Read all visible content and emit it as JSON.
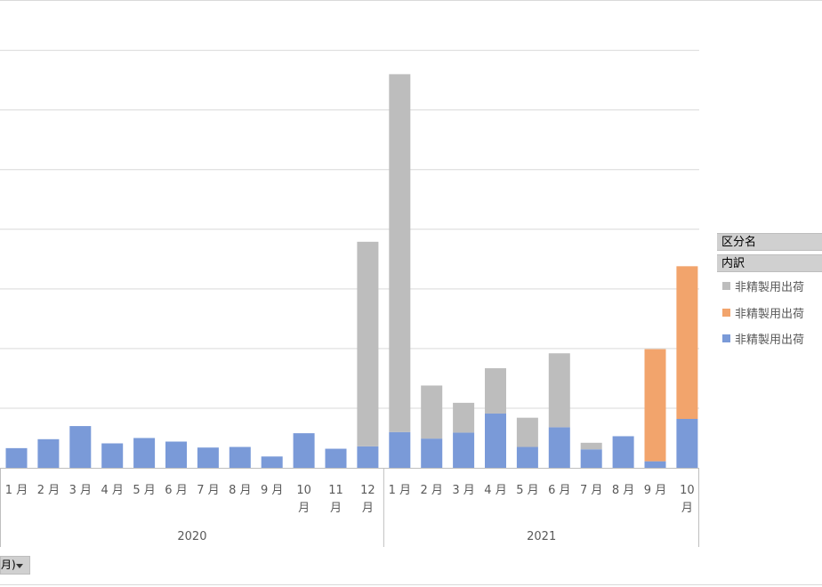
{
  "chart_data": {
    "type": "bar",
    "stacked": true,
    "grid": true,
    "year_groups": [
      {
        "label": "2020",
        "month_count": 12
      },
      {
        "label": "2021",
        "month_count": 10
      }
    ],
    "categories": [
      "1月",
      "2月",
      "3月",
      "4月",
      "5月",
      "6月",
      "7月",
      "8月",
      "9月",
      "10月",
      "11月",
      "12月",
      "1月",
      "2月",
      "3月",
      "4月",
      "5月",
      "6月",
      "7月",
      "8月",
      "9月",
      "10月"
    ],
    "series": [
      {
        "name": "非精製用出荷",
        "color": "#7a9ad8",
        "values": [
          33,
          48,
          70,
          41,
          50,
          44,
          34,
          35,
          19,
          58,
          32,
          36,
          60,
          49,
          59,
          91,
          35,
          68,
          31,
          53,
          11,
          82
        ]
      },
      {
        "name": "非精製用出荷",
        "color": "#f2a46c",
        "values": [
          0,
          0,
          0,
          0,
          0,
          0,
          0,
          0,
          0,
          0,
          0,
          0,
          0,
          0,
          0,
          0,
          0,
          0,
          0,
          0,
          188,
          256
        ]
      },
      {
        "name": "非精製用出荷",
        "color": "#bdbdbd",
        "values": [
          0,
          0,
          0,
          0,
          0,
          0,
          0,
          0,
          0,
          0,
          0,
          343,
          600,
          89,
          50,
          76,
          49,
          124,
          11,
          0,
          0,
          0
        ]
      }
    ],
    "ylim": [
      0,
      700
    ],
    "title": "",
    "xlabel": "",
    "ylabel": ""
  },
  "legend": {
    "header": "区分名",
    "subheader": "内訳",
    "items": [
      {
        "label": "非精製用出荷",
        "color": "#bdbdbd"
      },
      {
        "label": "非精製用出荷",
        "color": "#f2a46c"
      },
      {
        "label": "非精製用出荷",
        "color": "#7a9ad8"
      }
    ]
  },
  "filter_button": {
    "label": "月)"
  }
}
